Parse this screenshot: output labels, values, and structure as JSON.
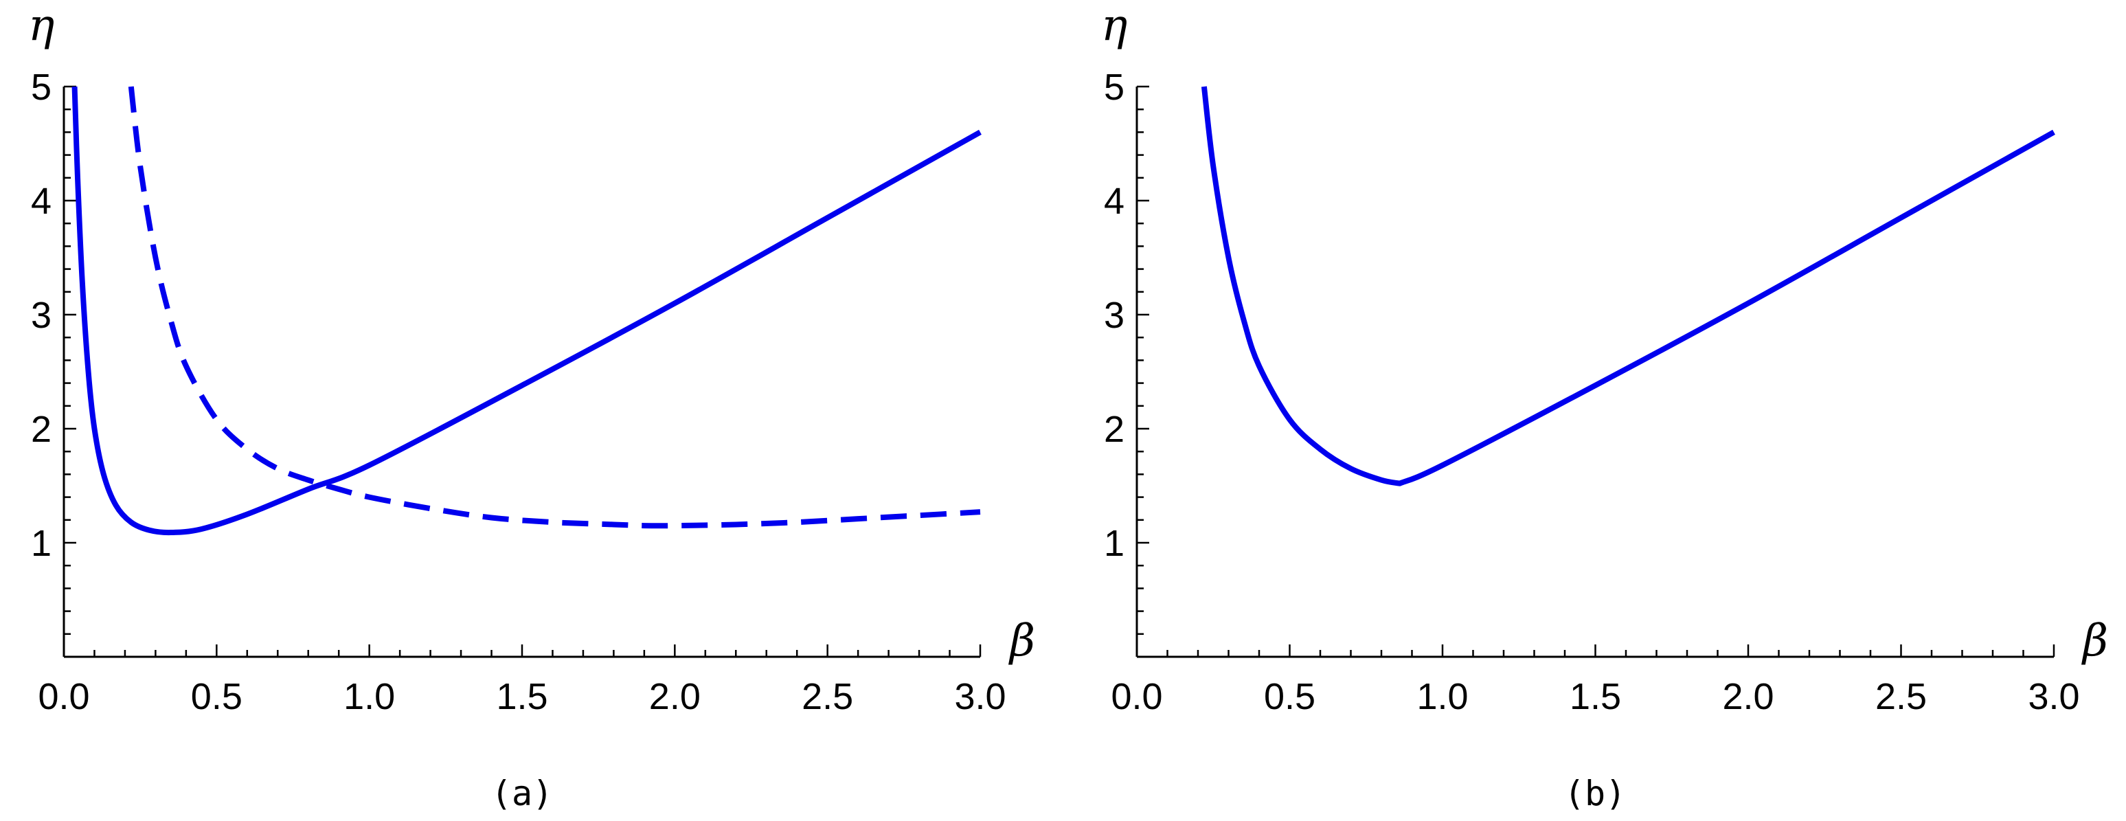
{
  "chart_data": [
    {
      "type": "line",
      "panel_label": "(a)",
      "xlabel": "β",
      "ylabel": "η",
      "xlim": [
        0,
        3.0
      ],
      "ylim": [
        0,
        5
      ],
      "x_ticks": [
        "0.0",
        "0.5",
        "1.0",
        "1.5",
        "2.0",
        "2.5",
        "3.0"
      ],
      "y_ticks": [
        "1",
        "2",
        "3",
        "4",
        "5"
      ],
      "grid": false,
      "color": "#0000ee",
      "series": [
        {
          "style": "solid",
          "x": [
            0.035,
            0.045,
            0.06,
            0.08,
            0.1,
            0.13,
            0.17,
            0.22,
            0.28,
            0.35,
            0.45,
            0.6,
            0.8,
            1.0,
            1.5,
            2.0,
            2.5,
            3.0
          ],
          "y": [
            5.0,
            4.2,
            3.3,
            2.5,
            2.0,
            1.6,
            1.33,
            1.18,
            1.11,
            1.09,
            1.12,
            1.25,
            1.47,
            1.68,
            2.38,
            3.1,
            3.85,
            4.6
          ]
        },
        {
          "style": "dashed",
          "x": [
            0.22,
            0.25,
            0.3,
            0.35,
            0.4,
            0.5,
            0.6,
            0.7,
            0.8,
            0.9,
            1.0,
            1.2,
            1.4,
            1.6,
            1.8,
            1.9,
            2.0,
            2.2,
            2.4,
            2.6,
            2.8,
            3.0
          ],
          "y": [
            5.0,
            4.3,
            3.5,
            2.95,
            2.55,
            2.08,
            1.82,
            1.65,
            1.55,
            1.47,
            1.4,
            1.3,
            1.22,
            1.18,
            1.16,
            1.15,
            1.15,
            1.16,
            1.18,
            1.21,
            1.24,
            1.27
          ]
        }
      ]
    },
    {
      "type": "line",
      "panel_label": "(b)",
      "xlabel": "β",
      "ylabel": "η",
      "xlim": [
        0,
        3.0
      ],
      "ylim": [
        0,
        5
      ],
      "x_ticks": [
        "0.0",
        "0.5",
        "1.0",
        "1.5",
        "2.0",
        "2.5",
        "3.0"
      ],
      "y_ticks": [
        "1",
        "2",
        "3",
        "4",
        "5"
      ],
      "grid": false,
      "color": "#0000ee",
      "series": [
        {
          "style": "solid",
          "x": [
            0.22,
            0.25,
            0.3,
            0.35,
            0.4,
            0.5,
            0.6,
            0.7,
            0.8,
            0.86,
            1.0,
            1.5,
            2.0,
            2.5,
            3.0
          ],
          "y": [
            5.0,
            4.3,
            3.5,
            2.95,
            2.55,
            2.08,
            1.82,
            1.65,
            1.55,
            1.52,
            1.68,
            2.38,
            3.1,
            3.85,
            4.6
          ]
        }
      ]
    }
  ]
}
